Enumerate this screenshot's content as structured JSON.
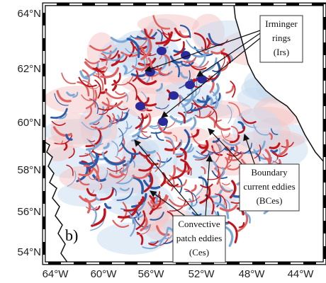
{
  "panel_label": "b)",
  "x_axis": {
    "ticks": [
      "64°W",
      "60°W",
      "56°W",
      "52°W",
      "48°W",
      "44°W"
    ]
  },
  "y_axis": {
    "ticks": [
      "64°N",
      "62°N",
      "60°N",
      "58°N",
      "56°N",
      "54°N"
    ]
  },
  "annotations": [
    {
      "lines": [
        "Irminger",
        "rings",
        "(Irs)"
      ]
    },
    {
      "lines": [
        "Boundary",
        "current eddies",
        "(BCes)"
      ]
    },
    {
      "lines": [
        "Convective",
        "patch eddies",
        "(Ces)"
      ]
    }
  ]
}
